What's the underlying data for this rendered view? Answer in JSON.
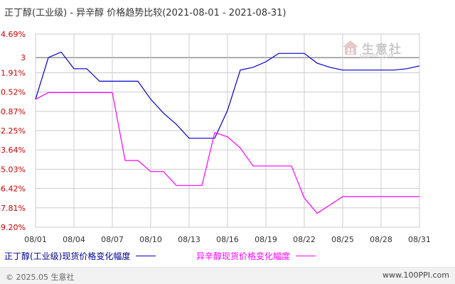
{
  "header": {
    "title": "正丁醇(工业级) - 异辛醇 价格趋势比较(2021-08-01 - 2021-08-31)"
  },
  "watermark": {
    "brand": "生意社",
    "url": "100PPI.COM"
  },
  "footer": {
    "copyright": "© 2025.05 生意社",
    "site": "www.100PPI.com"
  },
  "chart_data": {
    "type": "line",
    "title": "正丁醇(工业级) - 异辛醇 价格趋势比较(2021-08-01 - 2021-08-31)",
    "x": [
      "08/01",
      "08/02",
      "08/03",
      "08/04",
      "08/05",
      "08/06",
      "08/07",
      "08/08",
      "08/09",
      "08/10",
      "08/11",
      "08/12",
      "08/13",
      "08/14",
      "08/15",
      "08/16",
      "08/17",
      "08/18",
      "08/19",
      "08/20",
      "08/21",
      "08/22",
      "08/23",
      "08/24",
      "08/25",
      "08/26",
      "08/27",
      "08/28",
      "08/29",
      "08/30",
      "08/31"
    ],
    "xticks": [
      "08/01",
      "08/04",
      "08/07",
      "08/10",
      "08/13",
      "08/16",
      "08/19",
      "08/22",
      "08/25",
      "08/28",
      "08/31"
    ],
    "yticks": [
      "4.69%",
      "3",
      "1.91%",
      "0.52%",
      "-0.87%",
      "-2.25%",
      "-3.64%",
      "-5.03%",
      "-6.42%",
      "-7.81%",
      "-9.20%"
    ],
    "ytick_values": [
      4.69,
      3.0,
      1.91,
      0.52,
      -0.87,
      -2.25,
      -3.64,
      -5.03,
      -6.42,
      -7.81,
      -9.2
    ],
    "ylim": [
      -9.2,
      4.69
    ],
    "reference_line": 3.0,
    "grid": true,
    "legend_position": "bottom",
    "series": [
      {
        "name": "正丁醇(工业级)现货价格变化幅度",
        "color": "#0000CC",
        "values": [
          0.0,
          3.0,
          3.4,
          2.2,
          2.2,
          1.3,
          1.3,
          1.3,
          1.3,
          0.0,
          -1.0,
          -1.8,
          -2.8,
          -2.8,
          -2.8,
          -0.8,
          2.1,
          2.3,
          2.7,
          3.3,
          3.3,
          3.3,
          2.6,
          2.3,
          2.1,
          2.1,
          2.1,
          2.1,
          2.1,
          2.2,
          2.4
        ]
      },
      {
        "name": "异辛醇现货价格变化幅度",
        "color": "#FF00FF",
        "values": [
          0.0,
          0.48,
          0.48,
          0.48,
          0.48,
          0.48,
          0.48,
          -4.4,
          -4.4,
          -5.2,
          -5.2,
          -6.2,
          -6.2,
          -6.2,
          -2.4,
          -2.7,
          -3.5,
          -4.8,
          -4.8,
          -4.8,
          -4.8,
          -7.1,
          -8.2,
          -7.6,
          -7.0,
          -7.0,
          -7.0,
          -7.0,
          -7.0,
          -7.0,
          -7.0
        ]
      }
    ]
  }
}
